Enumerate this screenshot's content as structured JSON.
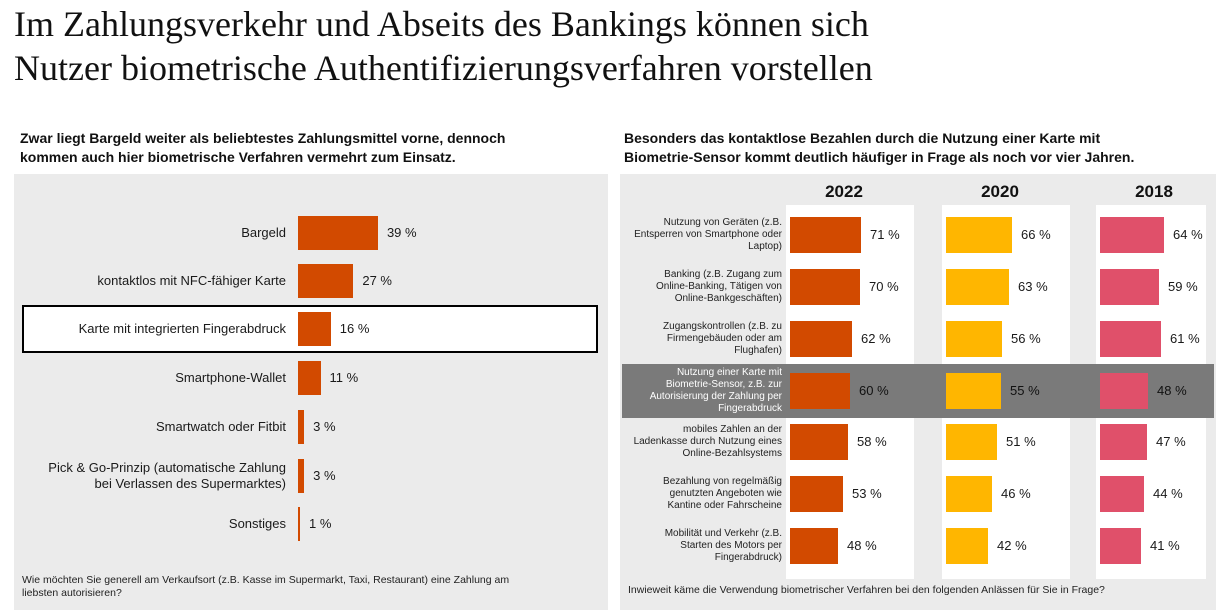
{
  "title_line1": "Im Zahlungsverkehr und Abseits des Bankings können sich",
  "title_line2": "Nutzer biometrische Authentifizierungsverfahren vorstellen",
  "left": {
    "subtitle_line1": "Zwar liegt Bargeld weiter als beliebtestes Zahlungsmittel vorne, dennoch",
    "subtitle_line2": "kommen auch hier biometrische Verfahren vermehrt zum Einsatz.",
    "question_line1": "Wie möchten Sie generell am Verkaufsort (z.B. Kasse im Supermarkt, Taxi, Restaurant) eine Zahlung am",
    "question_line2": "liebsten autorisieren?"
  },
  "right": {
    "subtitle_line1": "Besonders das kontaktlose Bezahlen durch die Nutzung einer Karte mit",
    "subtitle_line2": "Biometrie-Sensor kommt deutlich häufiger in Frage als noch vor vier Jahren.",
    "question": "Inwieweit käme die Verwendung biometrischer Verfahren bei den folgenden Anlässen für Sie in Frage?"
  },
  "colors": {
    "orange": "#d24a00",
    "yellow": "#ffb600",
    "rose": "#e0506a",
    "panel": "#ebebeb",
    "highlight": "#7a7a7a"
  },
  "chart_data": [
    {
      "type": "bar",
      "orientation": "horizontal",
      "categories": [
        "Bargeld",
        "kontaktlos mit NFC-fähiger Karte",
        "Karte mit integrierten Fingerabdruck",
        "Smartphone-Wallet",
        "Smartwatch oder Fitbit",
        "Pick & Go-Prinzip (automatische Zahlung bei Verlassen des Supermarktes)",
        "Sonstiges"
      ],
      "values": [
        39,
        27,
        16,
        11,
        3,
        3,
        1
      ],
      "value_labels": [
        "39 %",
        "27 %",
        "16 %",
        "11 %",
        "3 %",
        "3 %",
        "1 %"
      ],
      "highlighted_category": "Karte mit integrierten Fingerabdruck",
      "unit": "%"
    },
    {
      "type": "bar",
      "orientation": "horizontal",
      "categories": [
        "Nutzung von Geräten (z.B. Entsperren von Smartphone oder Laptop)",
        "Banking (z.B. Zugang zum Online-Banking, Tätigen von Online-Bankgeschäften)",
        "Zugangskontrollen (z.B. zu Firmengebäuden oder am Flughafen)",
        "Nutzung einer Karte mit Biometrie-Sensor, z.B. zur Autorisierung der Zahlung per Fingerabdruck",
        "mobiles Zahlen an der Ladenkasse durch Nutzung eines Online-Bezahlsystems",
        "Bezahlung von regelmäßig genutzten Angeboten wie Kantine oder Fahrscheine",
        "Mobilität und Verkehr (z.B. Starten des Motors per Fingerabdruck)"
      ],
      "category_lines": [
        [
          "Nutzung von Geräten (z.B.",
          "Entsperren von Smartphone oder",
          "Laptop)"
        ],
        [
          "Banking (z.B. Zugang zum",
          "Online-Banking, Tätigen von",
          "Online-Bankgeschäften)"
        ],
        [
          "Zugangskontrollen (z.B. zu",
          "Firmengebäuden oder am",
          "Flughafen)"
        ],
        [
          "Nutzung einer Karte mit",
          "Biometrie-Sensor, z.B. zur",
          "Autorisierung der Zahlung per",
          "Fingerabdruck"
        ],
        [
          "mobiles Zahlen an der",
          "Ladenkasse durch Nutzung eines",
          "Online-Bezahlsystems"
        ],
        [
          "Bezahlung von regelmäßig",
          "genutzten Angeboten wie",
          "Kantine oder Fahrscheine"
        ],
        [
          "Mobilität und Verkehr (z.B.",
          "Starten des Motors per",
          "Fingerabdruck)"
        ]
      ],
      "series": [
        {
          "name": "2022",
          "values": [
            71,
            70,
            62,
            60,
            58,
            53,
            48
          ],
          "labels": [
            "71 %",
            "70 %",
            "62 %",
            "60 %",
            "58 %",
            "53 %",
            "48 %"
          ],
          "color": "#d24a00"
        },
        {
          "name": "2020",
          "values": [
            66,
            63,
            56,
            55,
            51,
            46,
            42
          ],
          "labels": [
            "66 %",
            "63 %",
            "56 %",
            "55 %",
            "51 %",
            "46 %",
            "42 %"
          ],
          "color": "#ffb600"
        },
        {
          "name": "2018",
          "values": [
            64,
            59,
            61,
            48,
            47,
            44,
            41
          ],
          "labels": [
            "64 %",
            "59 %",
            "61 %",
            "48 %",
            "47 %",
            "44 %",
            "41 %"
          ],
          "color": "#e0506a"
        }
      ],
      "highlighted_index": 3,
      "unit": "%"
    }
  ]
}
